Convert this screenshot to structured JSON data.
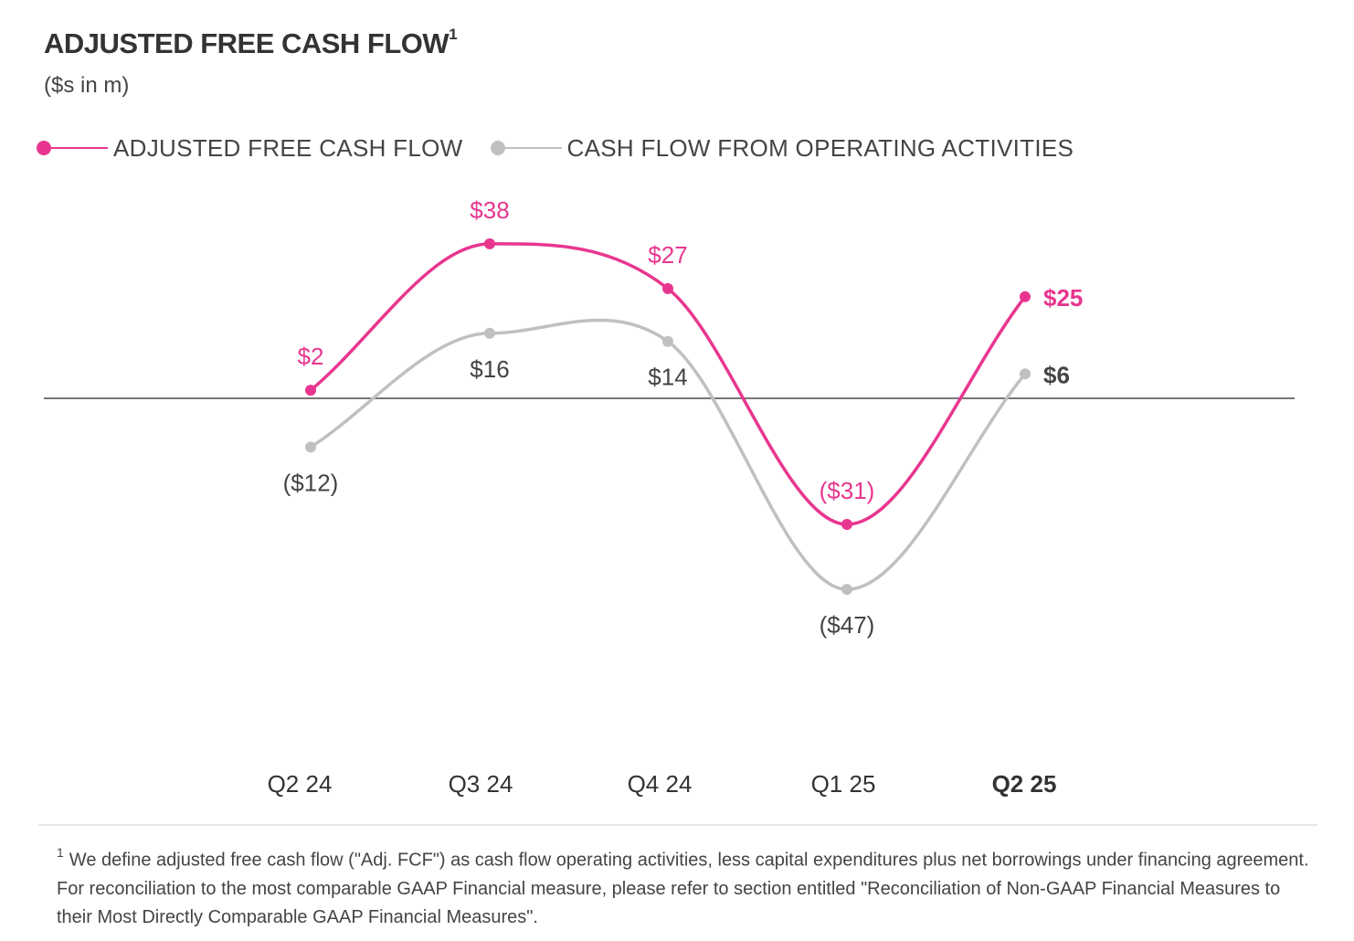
{
  "title": "ADJUSTED FREE CASH FLOW",
  "title_superscript": "1",
  "subtitle": "($s in m)",
  "colors": {
    "adjusted_fcf": "#e8368f",
    "operating_cf": "#c0c0c0",
    "zero_line": "#777777"
  },
  "legend": [
    {
      "label": "ADJUSTED FREE CASH FLOW",
      "color": "#e8368f"
    },
    {
      "label": "CASH FLOW FROM OPERATING ACTIVITIES",
      "color": "#c0c0c0"
    }
  ],
  "chart_data": {
    "type": "line",
    "categories": [
      "Q2 24",
      "Q3 24",
      "Q4 24",
      "Q1 25",
      "Q2 25"
    ],
    "highlighted_category": "Q2 25",
    "series": [
      {
        "name": "ADJUSTED FREE CASH FLOW",
        "values": [
          2,
          38,
          27,
          -31,
          25
        ],
        "labels": [
          "$2",
          "$38",
          "$27",
          "($31)",
          "$25"
        ],
        "color": "#e8368f"
      },
      {
        "name": "CASH FLOW FROM OPERATING ACTIVITIES",
        "values": [
          -12,
          16,
          14,
          -47,
          6
        ],
        "labels": [
          "($12)",
          "$16",
          "$14",
          "($47)",
          "$6"
        ],
        "color": "#c0c0c0"
      }
    ],
    "ylim": [
      -60,
      42
    ],
    "grid": false,
    "legend_position": "top-left",
    "smooth": true
  },
  "footnote": {
    "marker": "1",
    "text": "We define adjusted free cash flow (\"Adj. FCF\") as cash flow operating activities, less capital expenditures plus net borrowings under financing agreement. For reconciliation to the most comparable GAAP Financial measure, please refer to section entitled \"Reconciliation of Non-GAAP Financial Measures to their Most Directly Comparable GAAP Financial Measures\"."
  }
}
